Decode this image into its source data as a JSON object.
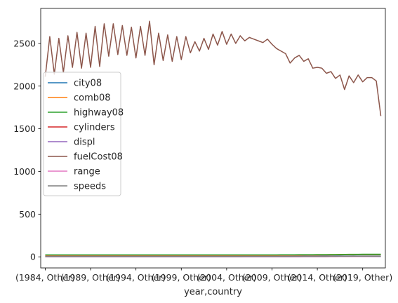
{
  "chart_data": {
    "type": "line",
    "xlabel": "year,country",
    "ylabel": "",
    "title": "",
    "ylim": [
      -130,
      2910
    ],
    "yticks": [
      0,
      500,
      1000,
      1500,
      2000,
      2500
    ],
    "x_count": 75,
    "xlim": [
      -1,
      75
    ],
    "xticks": [
      {
        "index": 0,
        "label": "(1984, Other)"
      },
      {
        "index": 10,
        "label": "(1989, Other)"
      },
      {
        "index": 20,
        "label": "(1994, Other)"
      },
      {
        "index": 30,
        "label": "(1999, Other)"
      },
      {
        "index": 40,
        "label": "(2004, Other)"
      },
      {
        "index": 50,
        "label": "(2009, Other)"
      },
      {
        "index": 60,
        "label": "(2014, Other)"
      },
      {
        "index": 70,
        "label": "(2019, Other)"
      }
    ],
    "legend_position": "center-left",
    "grid": false,
    "series": [
      {
        "name": "city08",
        "color": "#1f77b4",
        "values": [
          18,
          18,
          18,
          18,
          18,
          18,
          18,
          18,
          18,
          18,
          18,
          18,
          18,
          18,
          18,
          18,
          18,
          18,
          18,
          18,
          18,
          18,
          18,
          18,
          18,
          18,
          18,
          18,
          18,
          18,
          18,
          18,
          18,
          18,
          18,
          18,
          18,
          18,
          18,
          18,
          18,
          18,
          18,
          18,
          18,
          18,
          18,
          18,
          18,
          18,
          18,
          18,
          19,
          19,
          19,
          19,
          19,
          19,
          20,
          20,
          20,
          20,
          20,
          21,
          21,
          21,
          22,
          22,
          22,
          23,
          23,
          23,
          23,
          23,
          23
        ]
      },
      {
        "name": "comb08",
        "color": "#ff7f0e",
        "values": [
          20,
          20,
          20,
          20,
          20,
          20,
          20,
          20,
          20,
          20,
          20,
          20,
          20,
          20,
          20,
          20,
          20,
          20,
          20,
          20,
          20,
          20,
          20,
          20,
          20,
          20,
          20,
          20,
          20,
          20,
          20,
          20,
          20,
          20,
          20,
          20,
          20,
          20,
          20,
          20,
          20,
          20,
          20,
          20,
          20,
          20,
          20,
          20,
          20,
          20,
          20,
          20,
          21,
          21,
          21,
          21,
          21,
          22,
          22,
          22,
          22,
          23,
          23,
          23,
          24,
          24,
          25,
          25,
          25,
          26,
          26,
          26,
          26,
          26,
          26
        ]
      },
      {
        "name": "highway08",
        "color": "#2ca02c",
        "values": [
          23,
          23,
          23,
          23,
          23,
          23,
          23,
          23,
          23,
          23,
          23,
          23,
          23,
          23,
          23,
          23,
          23,
          23,
          23,
          23,
          23,
          23,
          23,
          23,
          23,
          23,
          23,
          23,
          23,
          23,
          23,
          23,
          23,
          23,
          23,
          23,
          23,
          23,
          23,
          23,
          23,
          23,
          23,
          23,
          23,
          23,
          23,
          23,
          23,
          23,
          23,
          23,
          24,
          24,
          24,
          24,
          25,
          25,
          25,
          25,
          26,
          26,
          26,
          27,
          27,
          28,
          28,
          29,
          29,
          29,
          30,
          30,
          30,
          30,
          30
        ]
      },
      {
        "name": "cylinders",
        "color": "#d62728",
        "values": [
          6,
          6,
          6,
          6,
          6,
          6,
          6,
          6,
          6,
          6,
          6,
          6,
          6,
          6,
          6,
          6,
          6,
          6,
          6,
          6,
          6,
          6,
          6,
          6,
          6,
          6,
          6,
          6,
          6,
          6,
          6,
          6,
          6,
          6,
          6,
          6,
          6,
          6,
          6,
          6,
          6,
          6,
          6,
          6,
          6,
          6,
          6,
          6,
          6,
          6,
          6,
          6,
          6,
          6,
          6,
          6,
          6,
          6,
          6,
          6,
          6,
          6,
          6,
          6,
          6,
          6,
          5,
          5,
          5,
          5,
          5,
          5,
          5,
          5,
          5
        ]
      },
      {
        "name": "displ",
        "color": "#9467bd",
        "values": [
          3,
          3,
          3,
          3,
          3,
          3,
          3,
          3,
          3,
          3,
          3,
          3,
          3,
          3,
          3,
          3,
          3,
          3,
          3,
          3,
          3,
          3,
          3,
          3,
          3,
          3,
          3,
          3,
          3,
          3,
          3,
          3,
          3,
          3,
          3,
          3,
          3,
          3,
          3,
          3,
          3,
          3,
          3,
          3,
          3,
          3,
          3,
          3,
          3,
          3,
          3,
          3,
          3,
          3,
          3,
          3,
          3,
          3,
          3,
          3,
          3,
          3,
          3,
          3,
          3,
          3,
          3,
          3,
          3,
          3,
          3,
          3,
          3,
          3,
          3
        ]
      },
      {
        "name": "fuelCost08",
        "color": "#8c564b",
        "values": [
          2110,
          2580,
          2140,
          2560,
          2160,
          2590,
          2220,
          2630,
          2210,
          2620,
          2220,
          2700,
          2230,
          2730,
          2350,
          2730,
          2370,
          2710,
          2360,
          2690,
          2330,
          2700,
          2360,
          2760,
          2250,
          2620,
          2300,
          2600,
          2290,
          2580,
          2310,
          2580,
          2390,
          2520,
          2410,
          2560,
          2430,
          2610,
          2480,
          2640,
          2490,
          2610,
          2500,
          2590,
          2530,
          2570,
          2550,
          2530,
          2510,
          2550,
          2490,
          2440,
          2410,
          2380,
          2270,
          2330,
          2360,
          2290,
          2320,
          2210,
          2220,
          2210,
          2150,
          2170,
          2090,
          2130,
          1960,
          2120,
          2040,
          2130,
          2050,
          2100,
          2100,
          2060,
          1650
        ]
      },
      {
        "name": "range",
        "color": "#e377c2",
        "values": [
          0,
          0,
          0,
          0,
          0,
          0,
          0,
          0,
          0,
          0,
          0,
          0,
          0,
          0,
          0,
          0,
          0,
          0,
          0,
          0,
          0,
          0,
          0,
          0,
          0,
          0,
          0,
          0,
          0,
          0,
          0,
          0,
          0,
          0,
          0,
          0,
          0,
          0,
          0,
          0,
          0,
          0,
          0,
          0,
          0,
          0,
          0,
          0,
          0,
          0,
          0,
          0,
          0,
          0,
          0,
          0,
          0,
          1,
          1,
          1,
          1,
          1,
          1,
          2,
          2,
          3,
          3,
          3,
          4,
          4,
          5,
          5,
          6,
          6,
          8
        ]
      },
      {
        "name": "speeds",
        "color": "#7f7f7f",
        "values": [
          4,
          4,
          4,
          4,
          4,
          4,
          4,
          4,
          4,
          4,
          4,
          4,
          4,
          4,
          4,
          4,
          4,
          4,
          4,
          4,
          4,
          4,
          4,
          4,
          4,
          4,
          4,
          4,
          4,
          4,
          4,
          4,
          4,
          4,
          4,
          4,
          4,
          4,
          4,
          4,
          4,
          4,
          4,
          4,
          5,
          5,
          5,
          5,
          5,
          5,
          5,
          5,
          5,
          5,
          5,
          6,
          6,
          6,
          6,
          6,
          6,
          6,
          6,
          7,
          7,
          7,
          7,
          7,
          8,
          8,
          8,
          8,
          8,
          8,
          8
        ]
      }
    ]
  }
}
